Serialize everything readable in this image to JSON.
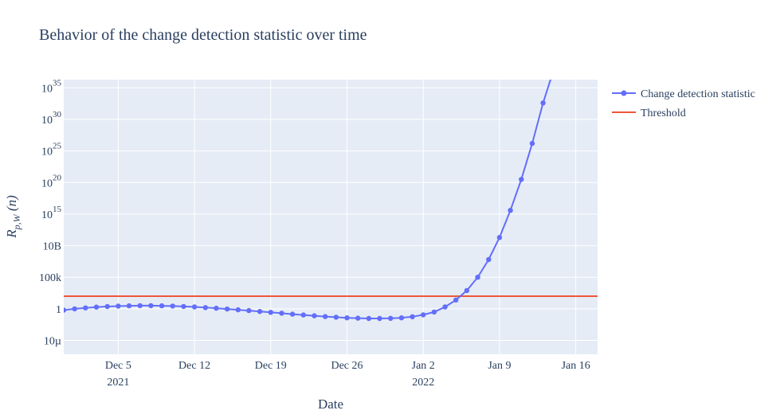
{
  "colors": {
    "plot_bg": "#e5ecf6",
    "grid": "#ffffff",
    "series": "#636efa",
    "threshold": "#ef553b",
    "text": "#2a3f5f"
  },
  "chart_data": {
    "type": "line",
    "title": "Behavior of the change detection statistic over time",
    "xlabel": "Date",
    "ylabel": "R_{p,W}(n)",
    "yscale": "log",
    "xlim": [
      "2021-11-30",
      "2022-01-18"
    ],
    "ylim_log10": [
      -7.2,
      36.3
    ],
    "grid": true,
    "legend_position": "top-right",
    "x_ticks": [
      {
        "date": "2021-12-05",
        "label": "Dec 5",
        "year": "2021"
      },
      {
        "date": "2021-12-12",
        "label": "Dec 12",
        "year": ""
      },
      {
        "date": "2021-12-19",
        "label": "Dec 19",
        "year": ""
      },
      {
        "date": "2021-12-26",
        "label": "Dec 26",
        "year": ""
      },
      {
        "date": "2022-01-02",
        "label": "Jan 2",
        "year": "2022"
      },
      {
        "date": "2022-01-09",
        "label": "Jan 9",
        "year": ""
      },
      {
        "date": "2022-01-16",
        "label": "Jan 16",
        "year": ""
      }
    ],
    "y_ticks": [
      {
        "log10": -5,
        "base": "10µ",
        "exp": ""
      },
      {
        "log10": 0,
        "base": "1",
        "exp": ""
      },
      {
        "log10": 5,
        "base": "100k",
        "exp": ""
      },
      {
        "log10": 10,
        "base": "10B",
        "exp": ""
      },
      {
        "log10": 15,
        "base": "10",
        "exp": "15"
      },
      {
        "log10": 20,
        "base": "10",
        "exp": "20"
      },
      {
        "log10": 25,
        "base": "10",
        "exp": "25"
      },
      {
        "log10": 30,
        "base": "10",
        "exp": "30"
      },
      {
        "log10": 35,
        "base": "10",
        "exp": "35"
      }
    ],
    "series": [
      {
        "name": "Change detection statistic",
        "start_date": "2021-11-30",
        "log10_values": [
          -0.2,
          0.0,
          0.15,
          0.28,
          0.37,
          0.43,
          0.48,
          0.5,
          0.5,
          0.48,
          0.44,
          0.38,
          0.3,
          0.2,
          0.1,
          -0.02,
          -0.15,
          -0.28,
          -0.42,
          -0.56,
          -0.7,
          -0.84,
          -0.97,
          -1.1,
          -1.22,
          -1.33,
          -1.42,
          -1.48,
          -1.52,
          -1.53,
          -1.5,
          -1.42,
          -1.25,
          -0.95,
          -0.5,
          0.3,
          1.4,
          2.9,
          5.0,
          7.8,
          11.3,
          15.6,
          20.5,
          26.2,
          32.6,
          38.0
        ]
      }
    ],
    "threshold": {
      "name": "Threshold",
      "log10_value": 2
    }
  }
}
